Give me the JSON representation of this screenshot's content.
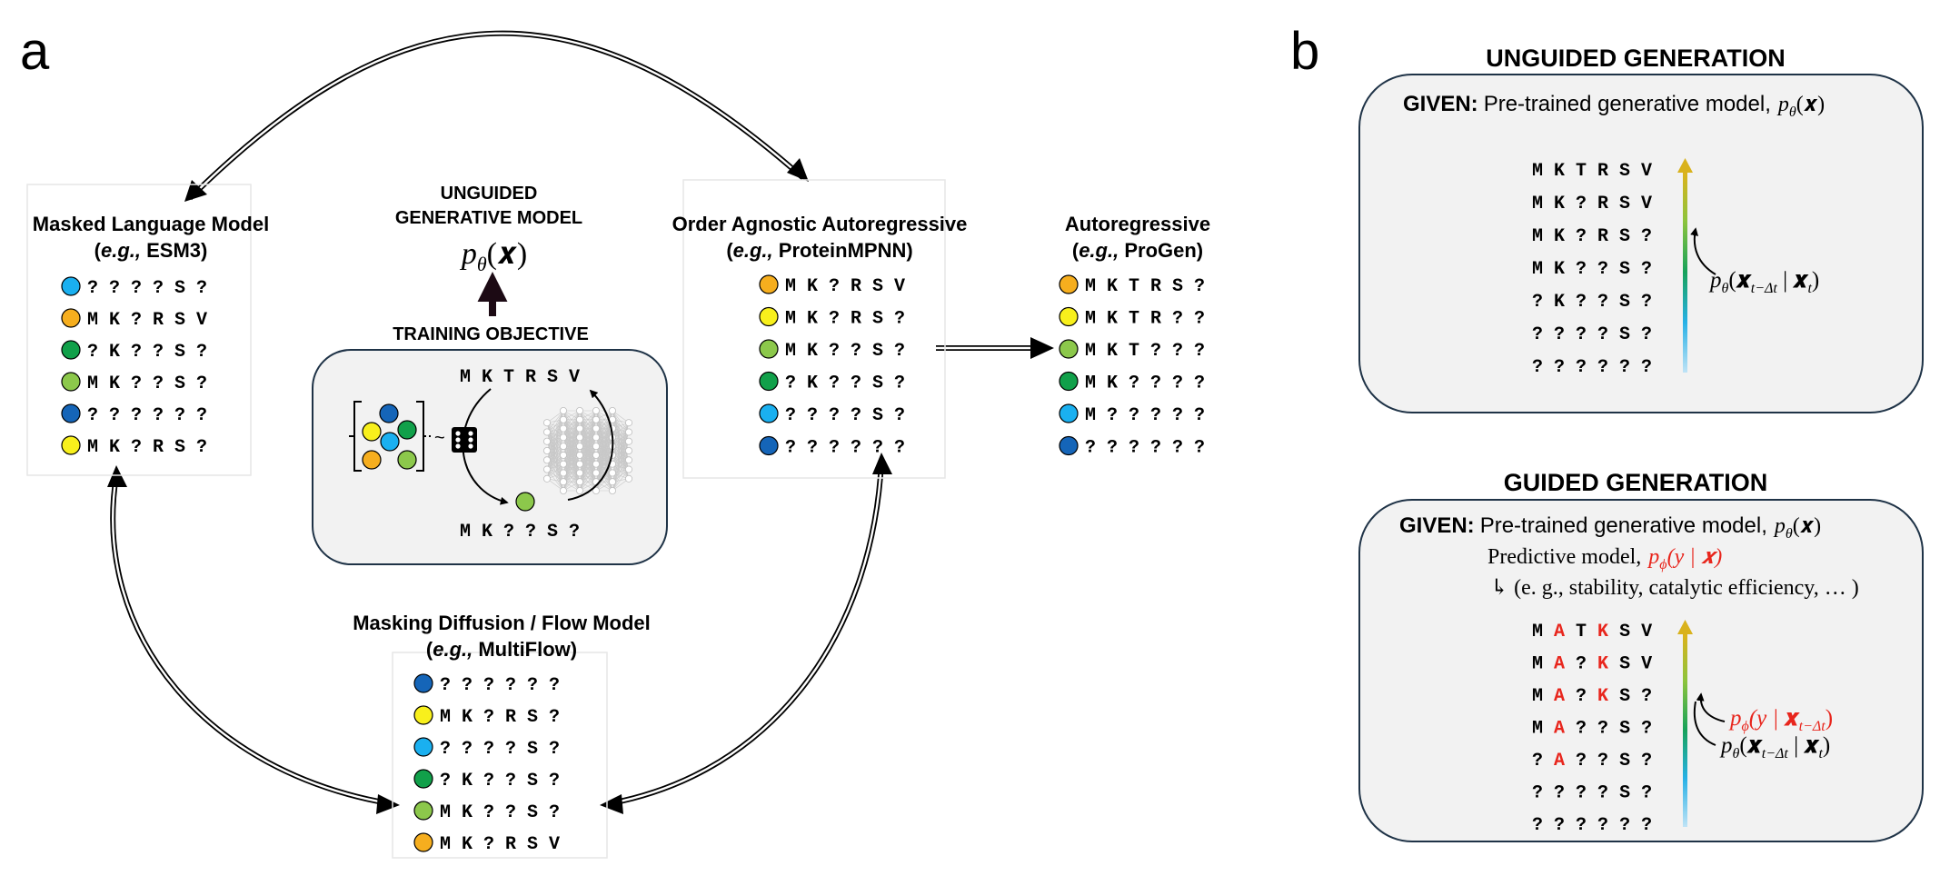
{
  "panel_a": {
    "letter": "a",
    "mlm": {
      "title": "Masked Language Model",
      "subtitle_prefix": "e.g.,",
      "subtitle_name": "ESM3",
      "rows": [
        {
          "color": "#1ab0f0",
          "seq": "? ? ? ? S ?"
        },
        {
          "color": "#f6ae1e",
          "seq": "M K ? R S V"
        },
        {
          "color": "#11a04a",
          "seq": "? K ? ? S ?"
        },
        {
          "color": "#8cc84b",
          "seq": "M K ? ? S ?"
        },
        {
          "color": "#1565b8",
          "seq": "? ? ? ? ? ?"
        },
        {
          "color": "#f8f01c",
          "seq": "M K ? R S ?"
        }
      ]
    },
    "center": {
      "title_line1": "UNGUIDED",
      "title_line2": "GENERATIVE MODEL",
      "formula_p": "p",
      "formula_sub": "θ",
      "formula_arg": "(𝒙)",
      "objective_label": "TRAINING OBJECTIVE",
      "top_seq": "M K T R S V",
      "bottom_seq": "M K ? ? S ?",
      "tilde": "~",
      "cluster_colors": [
        "#1565b8",
        "#f8f01c",
        "#11a04a",
        "#1ab0f0",
        "#f6ae1e",
        "#8cc84b"
      ],
      "sampled_color": "#8cc84b"
    },
    "oaa": {
      "title": "Order Agnostic Autoregressive",
      "subtitle_prefix": "e.g.,",
      "subtitle_name": "ProteinMPNN",
      "rows": [
        {
          "color": "#f6ae1e",
          "seq": "M K ? R S V"
        },
        {
          "color": "#f8f01c",
          "seq": "M K ? R S ?"
        },
        {
          "color": "#8cc84b",
          "seq": "M K ? ? S ?"
        },
        {
          "color": "#11a04a",
          "seq": "? K ? ? S ?"
        },
        {
          "color": "#1ab0f0",
          "seq": "? ? ? ? S ?"
        },
        {
          "color": "#1565b8",
          "seq": "? ? ? ? ? ?"
        }
      ]
    },
    "ar": {
      "title": "Autoregressive",
      "subtitle_prefix": "e.g.,",
      "subtitle_name": "ProGen",
      "rows": [
        {
          "color": "#f6ae1e",
          "seq": "M K T R S ?"
        },
        {
          "color": "#f8f01c",
          "seq": "M K T R ? ?"
        },
        {
          "color": "#8cc84b",
          "seq": "M K T ? ? ?"
        },
        {
          "color": "#11a04a",
          "seq": "M K ? ? ? ?"
        },
        {
          "color": "#1ab0f0",
          "seq": "M ? ? ? ? ?"
        },
        {
          "color": "#1565b8",
          "seq": "? ? ? ? ? ?"
        }
      ]
    },
    "mdf": {
      "title": "Masking Diffusion / Flow Model",
      "subtitle_prefix": "e.g.,",
      "subtitle_name": "MultiFlow",
      "rows": [
        {
          "color": "#1565b8",
          "seq": "? ? ? ? ? ?"
        },
        {
          "color": "#f8f01c",
          "seq": "M K ? R S ?"
        },
        {
          "color": "#1ab0f0",
          "seq": "? ? ? ? S ?"
        },
        {
          "color": "#11a04a",
          "seq": "? K ? ? S ?"
        },
        {
          "color": "#8cc84b",
          "seq": "M K ? ? S ?"
        },
        {
          "color": "#f6ae1e",
          "seq": "M K ? R S V"
        }
      ]
    }
  },
  "panel_b": {
    "letter": "b",
    "unguided": {
      "title": "UNGUIDED GENERATION",
      "given_label": "GIVEN:",
      "given_text": "Pre-trained generative model,",
      "given_formula": "p",
      "given_sub": "θ",
      "given_arg": "(𝒙)",
      "rows": [
        "M K T R S V",
        "M K ? R S V",
        "M K ? R S ?",
        "M K ? ? S ?",
        "? K ? ? S ?",
        "? ? ? ? S ?",
        "? ? ? ? ? ?"
      ],
      "annot_p": "p",
      "annot_sub": "θ",
      "annot_open": "(",
      "annot_x1": "𝒙",
      "annot_x1_sub": "t−Δt",
      "annot_bar": " | ",
      "annot_x2": "𝒙",
      "annot_x2_sub": "t",
      "annot_close": ")"
    },
    "guided": {
      "title": "GUIDED GENERATION",
      "given_label": "GIVEN:",
      "given_text": "Pre-trained generative model,",
      "given_formula": "p",
      "given_sub": "θ",
      "given_arg": "(𝒙)",
      "predictive_text": "Predictive model,",
      "pred_p": "p",
      "pred_sub": "ϕ",
      "pred_arg": "(y | 𝒙)",
      "examples": "↳ (e. g., stability, catalytic efficiency, … )",
      "rows": [
        [
          "M",
          "A",
          "T",
          "K",
          "S",
          "V"
        ],
        [
          "M",
          "A",
          "?",
          "K",
          "S",
          "V"
        ],
        [
          "M",
          "A",
          "?",
          "K",
          "S",
          "?"
        ],
        [
          "M",
          "A",
          "?",
          "?",
          "S",
          "?"
        ],
        [
          "?",
          "A",
          "?",
          "?",
          "S",
          "?"
        ],
        [
          "?",
          "?",
          "?",
          "?",
          "S",
          "?"
        ],
        [
          "?",
          "?",
          "?",
          "?",
          "?",
          "?"
        ]
      ],
      "highlight_color": "#e8251c",
      "annot1_p": "p",
      "annot1_sub": "ϕ",
      "annot1_arg": "(y | ",
      "annot1_x": "𝒙",
      "annot1_x_sub": "t−Δt",
      "annot1_close": ")",
      "annot2_p": "p",
      "annot2_sub": "θ",
      "annot2_open": "(",
      "annot2_x1": "𝒙",
      "annot2_x1_sub": "t−Δt",
      "annot2_bar": " | ",
      "annot2_x2": "𝒙",
      "annot2_x2_sub": "t",
      "annot2_close": ")"
    }
  },
  "colors": {
    "box_fill": "#f2f2f2",
    "box_stroke": "#1f3347",
    "guidance_red": "#e8251c"
  }
}
